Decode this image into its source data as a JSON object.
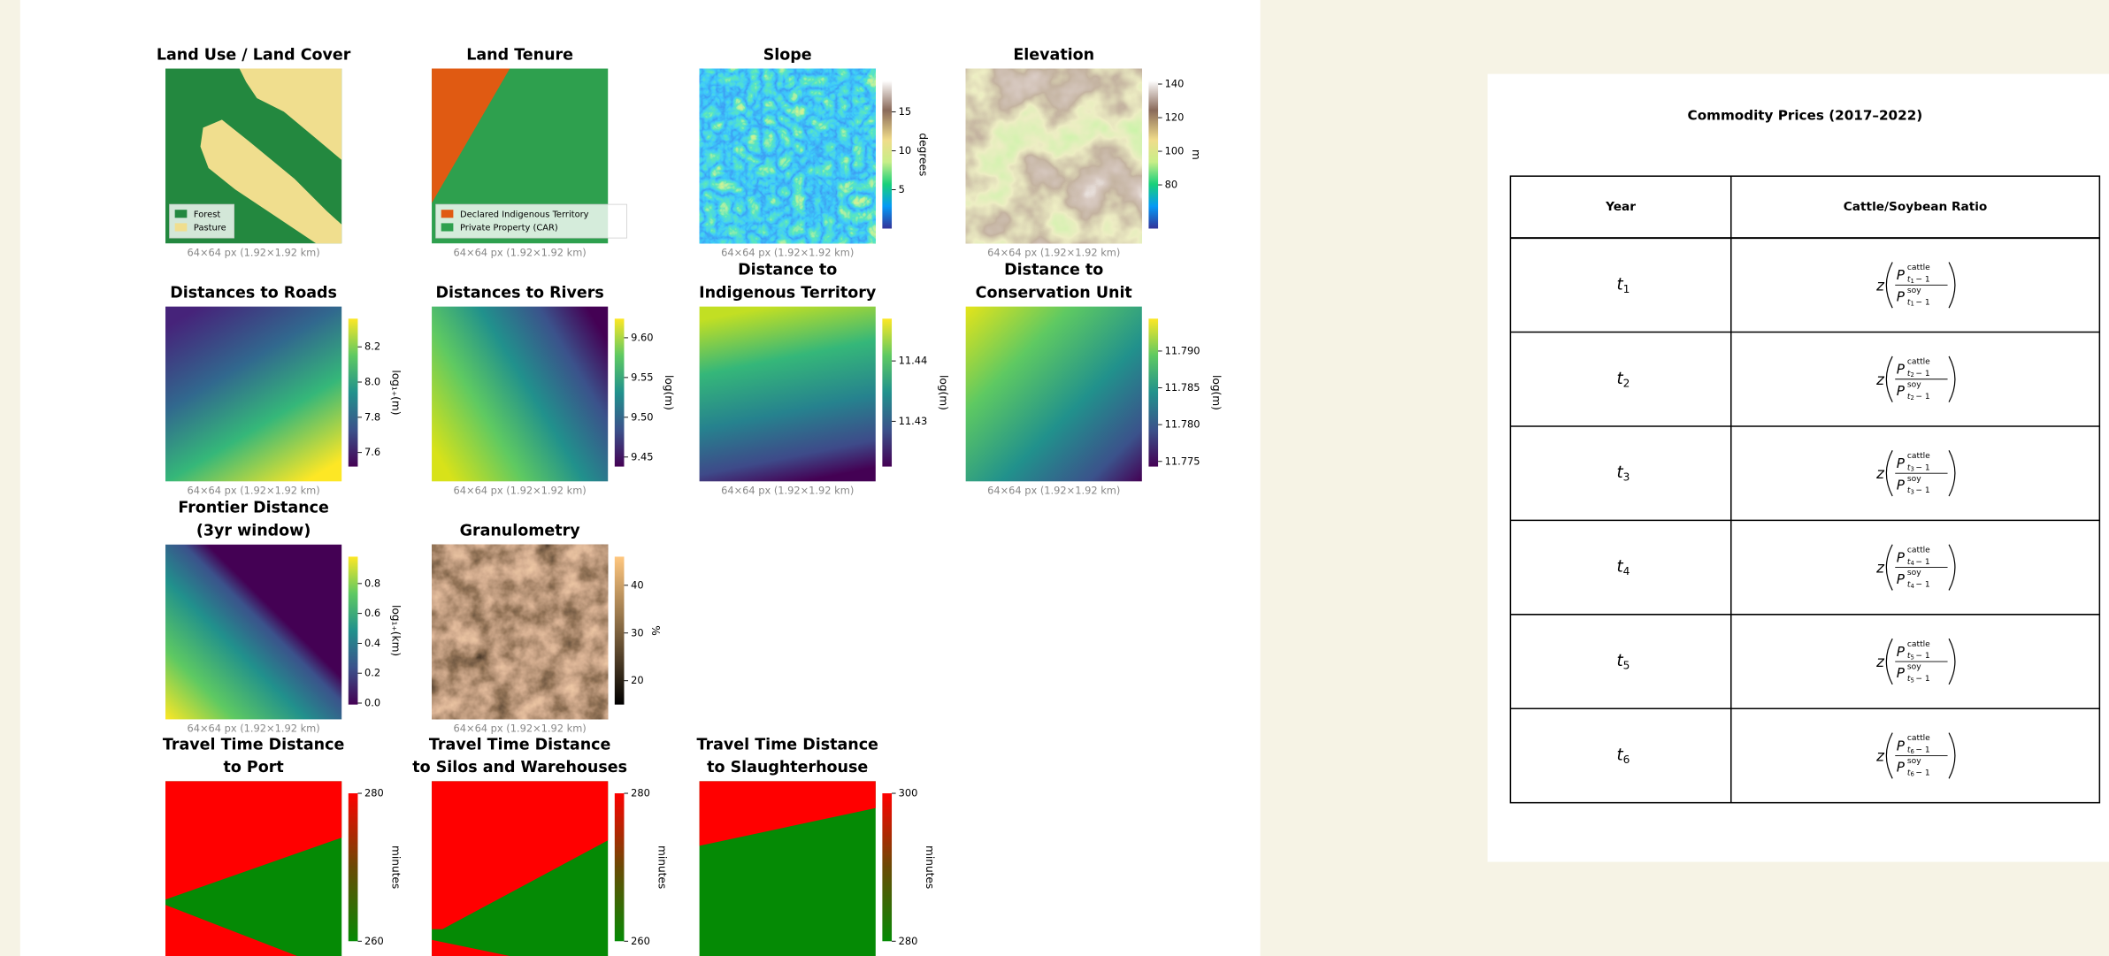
{
  "panels": [
    {
      "title": [
        "Land Use / Land Cover"
      ],
      "caption": "64×64 px (1.92×1.92 km)",
      "legend": [
        "Forest",
        "Pasture"
      ]
    },
    {
      "title": [
        "Land Tenure"
      ],
      "caption": "64×64 px (1.92×1.92 km)",
      "legend": [
        "Declared Indigenous Territory",
        "Private Property (CAR)"
      ]
    },
    {
      "title": [
        "Slope"
      ],
      "caption": "64×64 px (1.92×1.92 km)",
      "colorbar": {
        "label": "degrees",
        "lim": [
          0,
          19
        ],
        "ticks": [
          5,
          10,
          15
        ]
      }
    },
    {
      "title": [
        "Elevation"
      ],
      "caption": "64×64 px (1.92×1.92 km)",
      "colorbar": {
        "label": "m",
        "lim": [
          54,
          142
        ],
        "ticks": [
          80,
          100,
          120,
          140
        ]
      }
    },
    {
      "title": [
        "Distances to Roads"
      ],
      "caption": "64×64 px (1.92×1.92 km)",
      "colorbar": {
        "label": "log₁₊(m)",
        "lim": [
          7.52,
          8.36
        ],
        "ticks": [
          7.6,
          7.8,
          {
            "value": 8,
            "label": "8.0"
          },
          8.2
        ]
      }
    },
    {
      "title": [
        "Distances to Rivers"
      ],
      "caption": "64×64 px (1.92×1.92 km)",
      "colorbar": {
        "label": "log(m)",
        "lim": [
          9.438,
          9.624
        ],
        "ticks": [
          9.45,
          {
            "value": 9.5,
            "label": "9.50"
          },
          9.55,
          {
            "value": 9.6,
            "label": "9.60"
          }
        ]
      }
    },
    {
      "title": [
        "Distance to",
        "Indigenous Territory"
      ],
      "caption": "64×64 px (1.92×1.92 km)",
      "colorbar": {
        "label": "log(m)",
        "lim": [
          11.4225,
          11.447
        ],
        "ticks": [
          11.43,
          11.44
        ]
      }
    },
    {
      "title": [
        "Distance to",
        "Conservation Unit"
      ],
      "caption": "64×64 px (1.92×1.92 km)",
      "colorbar": {
        "label": "log(m)",
        "lim": [
          11.7743,
          11.7944
        ],
        "ticks": [
          11.775,
          {
            "value": 11.78,
            "label": "11.780"
          },
          11.785,
          {
            "value": 11.79,
            "label": "11.790"
          }
        ]
      }
    },
    {
      "title": [
        "Frontier Distance",
        "(3yr window)"
      ],
      "caption": "64×64 px (1.92×1.92 km)",
      "colorbar": {
        "label": "log₁₊(km)",
        "lim": [
          -0.01,
          0.98
        ],
        "ticks": [
          {
            "value": 0,
            "label": "0.0"
          },
          0.2,
          0.4,
          0.6,
          0.8
        ]
      }
    },
    {
      "title": [
        "Granulometry"
      ],
      "caption": "64×64 px (1.92×1.92 km)",
      "colorbar": {
        "label": "%",
        "lim": [
          15,
          46
        ],
        "ticks": [
          20,
          30,
          40
        ]
      }
    },
    {
      "title": [
        "Travel Time Distance",
        "to Port"
      ],
      "colorbar": {
        "label": "minutes",
        "lim": [
          260,
          280
        ],
        "ticks": [
          260,
          280
        ]
      }
    },
    {
      "title": [
        "Travel Time Distance",
        "to Silos and Warehouses"
      ],
      "colorbar": {
        "label": "minutes",
        "lim": [
          260,
          280
        ],
        "ticks": [
          260,
          280
        ]
      }
    },
    {
      "title": [
        "Travel Time Distance",
        "to Slaughterhouse"
      ],
      "colorbar": {
        "label": "minutes",
        "lim": [
          280,
          300
        ],
        "ticks": [
          280,
          300
        ]
      }
    }
  ],
  "table": {
    "title": "Commodity Prices (2017–2022)",
    "headers": [
      "Year",
      "Cattle/Soybean Ratio"
    ],
    "rows": [
      {
        "year": {
          "var": "t",
          "index": "1"
        },
        "ratio": {
          "fn": "z",
          "var": "P",
          "num": "cattle",
          "den": "soy",
          "lag": "− 1"
        }
      },
      {
        "year": {
          "var": "t",
          "index": "2"
        },
        "ratio": {
          "fn": "z",
          "var": "P",
          "num": "cattle",
          "den": "soy",
          "lag": "− 1"
        }
      },
      {
        "year": {
          "var": "t",
          "index": "3"
        },
        "ratio": {
          "fn": "z",
          "var": "P",
          "num": "cattle",
          "den": "soy",
          "lag": "− 1"
        }
      },
      {
        "year": {
          "var": "t",
          "index": "4"
        },
        "ratio": {
          "fn": "z",
          "var": "P",
          "num": "cattle",
          "den": "soy",
          "lag": "− 1"
        }
      },
      {
        "year": {
          "var": "t",
          "index": "5"
        },
        "ratio": {
          "fn": "z",
          "var": "P",
          "num": "cattle",
          "den": "soy",
          "lag": "− 1"
        }
      },
      {
        "year": {
          "var": "t",
          "index": "6"
        },
        "ratio": {
          "fn": "z",
          "var": "P",
          "num": "cattle",
          "den": "soy",
          "lag": "− 1"
        }
      }
    ]
  }
}
